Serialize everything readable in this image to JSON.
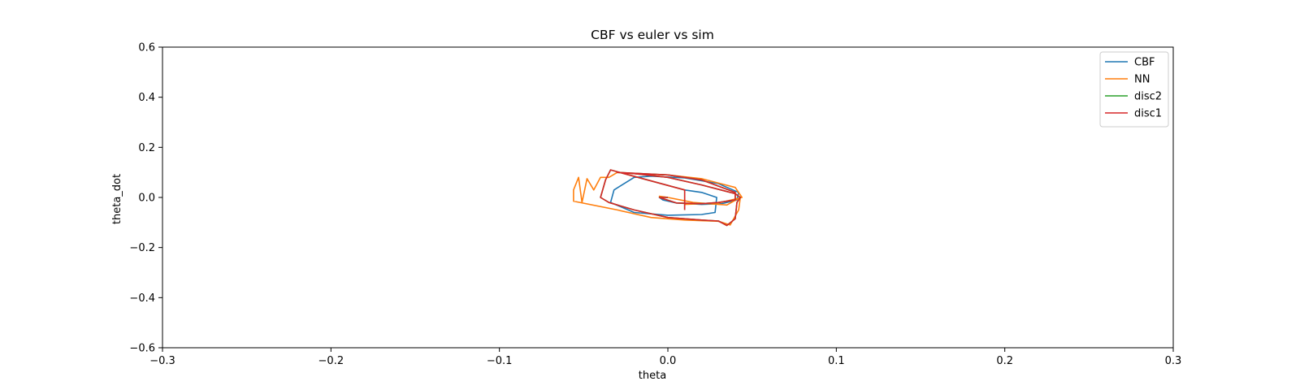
{
  "chart_data": {
    "type": "line",
    "title": "CBF vs euler vs sim",
    "xlabel": "theta",
    "ylabel": "theta_dot",
    "xlim": [
      -0.3,
      0.3
    ],
    "ylim": [
      -0.6,
      0.6
    ],
    "x_ticks": [
      -0.3,
      -0.2,
      -0.1,
      0.0,
      0.1,
      0.2,
      0.3
    ],
    "x_tick_labels": [
      "−0.3",
      "−0.2",
      "−0.1",
      "0.0",
      "0.1",
      "0.2",
      "0.3"
    ],
    "y_ticks": [
      0.6,
      0.4,
      0.2,
      0.0,
      -0.2,
      -0.4,
      -0.6
    ],
    "y_tick_labels": [
      "0.6",
      "0.4",
      "0.2",
      "0.0",
      "−0.2",
      "−0.4",
      "−0.6"
    ],
    "grid": false,
    "legend_position": "upper right",
    "series": [
      {
        "name": "CBF",
        "color": "#1f77b4",
        "points": [
          [
            0.01,
            0.03
          ],
          [
            0.02,
            0.02
          ],
          [
            0.029,
            0.0
          ],
          [
            0.028,
            -0.06
          ],
          [
            0.02,
            -0.068
          ],
          [
            0.0,
            -0.071
          ],
          [
            -0.02,
            -0.06
          ],
          [
            -0.034,
            -0.02
          ],
          [
            -0.032,
            0.03
          ],
          [
            -0.02,
            0.08
          ],
          [
            -0.01,
            0.085
          ],
          [
            0.01,
            0.078
          ],
          [
            0.03,
            0.055
          ],
          [
            0.042,
            0.02
          ],
          [
            0.041,
            -0.01
          ],
          [
            0.032,
            -0.025
          ],
          [
            0.02,
            -0.028
          ],
          [
            0.005,
            -0.022
          ],
          [
            -0.003,
            -0.01
          ],
          [
            -0.005,
            0.0
          ],
          [
            -0.003,
            0.002
          ],
          [
            0.0,
            0.0
          ]
        ]
      },
      {
        "name": "NN",
        "color": "#ff7f0e",
        "points": [
          [
            0.0,
            0.0
          ],
          [
            -0.005,
            0.005
          ],
          [
            0.0,
            0.0
          ],
          [
            0.015,
            -0.02
          ],
          [
            0.035,
            -0.03
          ],
          [
            0.043,
            0.0
          ],
          [
            0.042,
            -0.05
          ],
          [
            0.037,
            -0.11
          ],
          [
            0.03,
            -0.095
          ],
          [
            0.01,
            -0.09
          ],
          [
            -0.01,
            -0.08
          ],
          [
            -0.03,
            -0.05
          ],
          [
            -0.056,
            -0.015
          ],
          [
            -0.056,
            0.03
          ],
          [
            -0.053,
            0.08
          ],
          [
            -0.051,
            -0.02
          ],
          [
            -0.048,
            0.075
          ],
          [
            -0.044,
            0.03
          ],
          [
            -0.04,
            0.08
          ],
          [
            -0.035,
            0.08
          ],
          [
            -0.03,
            0.1
          ],
          [
            -0.02,
            0.095
          ],
          [
            0.0,
            0.09
          ],
          [
            0.02,
            0.075
          ],
          [
            0.04,
            0.04
          ],
          [
            0.044,
            0.0
          ],
          [
            0.03,
            -0.022
          ],
          [
            0.01,
            -0.028
          ],
          [
            0.01,
            -0.05
          ]
        ]
      },
      {
        "name": "disc2",
        "color": "#2ca02c",
        "points": [
          [
            0.01,
            -0.05
          ],
          [
            0.01,
            0.03
          ],
          [
            -0.026,
            0.095
          ],
          [
            -0.034,
            0.11
          ],
          [
            -0.037,
            0.07
          ],
          [
            -0.04,
            0.0
          ],
          [
            -0.035,
            -0.02
          ],
          [
            -0.02,
            -0.05
          ],
          [
            0.0,
            -0.08
          ],
          [
            0.02,
            -0.09
          ],
          [
            0.03,
            -0.094
          ],
          [
            0.035,
            -0.112
          ],
          [
            0.04,
            -0.085
          ],
          [
            0.041,
            -0.02
          ],
          [
            0.043,
            0.0
          ],
          [
            0.04,
            0.015
          ],
          [
            0.02,
            0.05
          ],
          [
            0.0,
            0.08
          ],
          [
            -0.02,
            0.095
          ],
          [
            -0.03,
            0.1
          ],
          [
            0.0,
            0.09
          ],
          [
            0.02,
            0.07
          ],
          [
            0.04,
            0.02
          ],
          [
            0.04,
            -0.01
          ],
          [
            0.03,
            -0.02
          ],
          [
            0.02,
            -0.025
          ],
          [
            0.005,
            -0.022
          ],
          [
            -0.005,
            0.0
          ],
          [
            0.0,
            0.0
          ]
        ]
      },
      {
        "name": "disc1",
        "color": "#d62728",
        "points": [
          [
            0.01,
            -0.05
          ],
          [
            0.01,
            0.03
          ],
          [
            -0.026,
            0.095
          ],
          [
            -0.034,
            0.11
          ],
          [
            -0.037,
            0.07
          ],
          [
            -0.04,
            0.0
          ],
          [
            -0.035,
            -0.02
          ],
          [
            -0.02,
            -0.05
          ],
          [
            0.0,
            -0.08
          ],
          [
            0.02,
            -0.09
          ],
          [
            0.03,
            -0.094
          ],
          [
            0.035,
            -0.112
          ],
          [
            0.04,
            -0.085
          ],
          [
            0.041,
            -0.02
          ],
          [
            0.043,
            0.0
          ],
          [
            0.04,
            0.015
          ],
          [
            0.02,
            0.05
          ],
          [
            0.0,
            0.08
          ],
          [
            -0.02,
            0.095
          ],
          [
            -0.03,
            0.1
          ],
          [
            0.0,
            0.09
          ],
          [
            0.02,
            0.07
          ],
          [
            0.04,
            0.02
          ],
          [
            0.04,
            -0.01
          ],
          [
            0.03,
            -0.02
          ],
          [
            0.02,
            -0.025
          ],
          [
            0.005,
            -0.022
          ],
          [
            -0.005,
            0.0
          ],
          [
            0.0,
            0.0
          ]
        ]
      }
    ]
  }
}
